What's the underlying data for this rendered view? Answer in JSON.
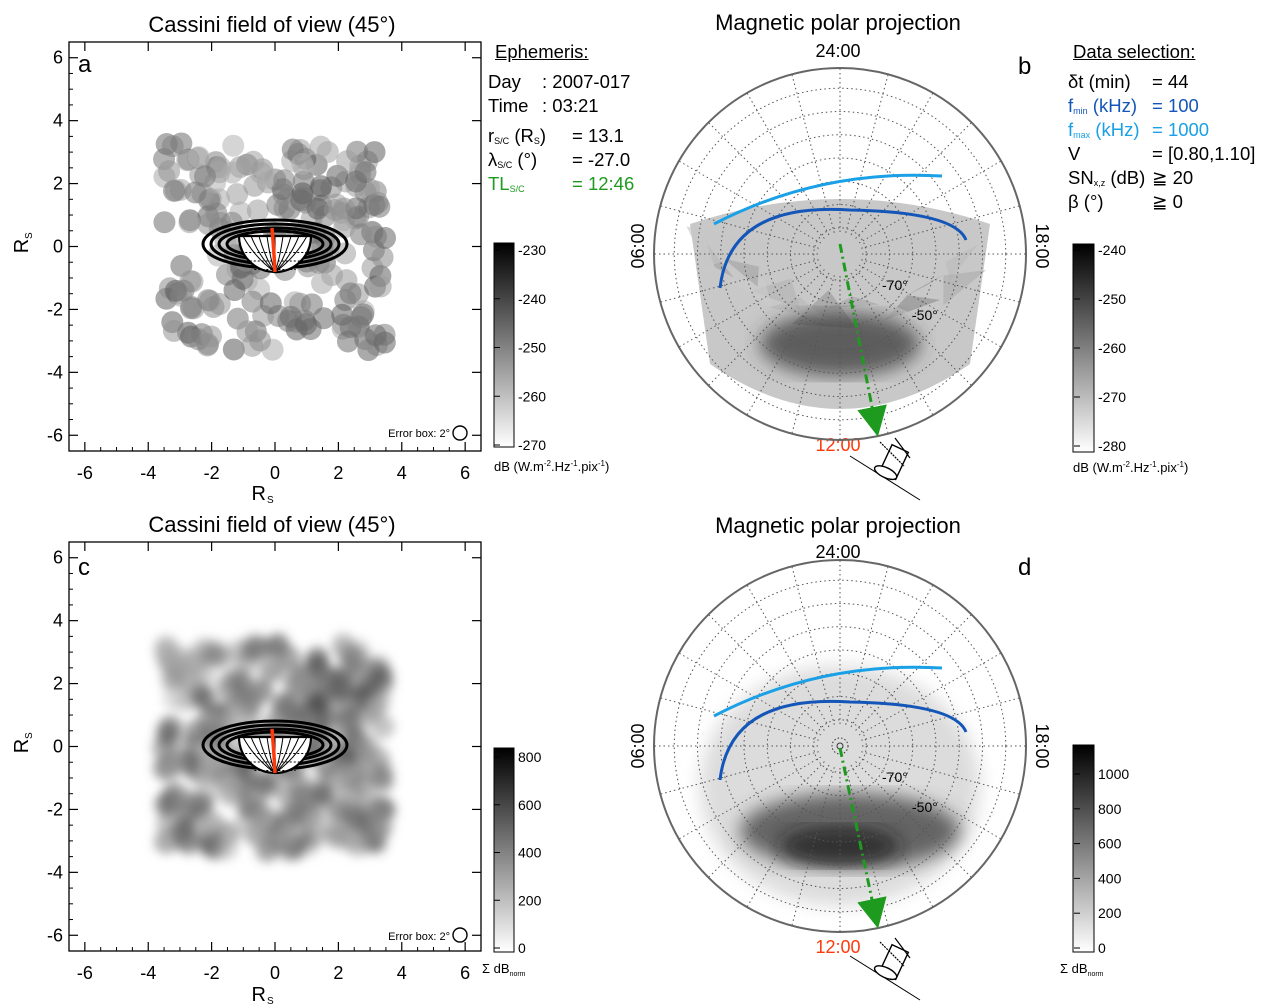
{
  "colors": {
    "fmin": "#1456b8",
    "fmax": "#1aa0e6",
    "tl": "#1e9b1e",
    "noon": "#ff3a0a",
    "trajectory": "#1e9b1e",
    "spacecraft_track": "#ff3a0a"
  },
  "panels": {
    "a": {
      "letter": "a",
      "title": "Cassini field of view (45°)",
      "xlabel": "R",
      "xlabel_sub": "S",
      "ylabel": "R",
      "ylabel_sub": "S",
      "ticks": [
        "-6",
        "-4",
        "-2",
        "0",
        "2",
        "4",
        "6"
      ],
      "error_box": "Error box: 2°"
    },
    "c": {
      "letter": "c",
      "title": "Cassini field of view (45°)",
      "xlabel": "R",
      "xlabel_sub": "S",
      "ylabel": "R",
      "ylabel_sub": "S",
      "ticks": [
        "-6",
        "-4",
        "-2",
        "0",
        "2",
        "4",
        "6"
      ],
      "error_box": "Error box: 2°"
    },
    "b": {
      "letter": "b",
      "title": "Magnetic polar projection",
      "top": "24:00",
      "bottom": "12:00",
      "left": "06:00",
      "right": "18:00",
      "lat1": "-70°",
      "lat2": "-50°"
    },
    "d": {
      "letter": "d",
      "title": "Magnetic polar projection",
      "top": "24:00",
      "bottom": "12:00",
      "left": "06:00",
      "right": "18:00",
      "lat1": "-70°",
      "lat2": "-50°"
    }
  },
  "colorbars": {
    "a": {
      "ticks": [
        "-230",
        "-240",
        "-250",
        "-260",
        "-270"
      ],
      "label": "dB (W.m",
      "label_sup1": "-2",
      "label_mid": ".Hz",
      "label_sup2": "-1",
      "label_mid2": ".pix",
      "label_sup3": "-1",
      "label_end": ")"
    },
    "b": {
      "ticks": [
        "-240",
        "-250",
        "-260",
        "-270",
        "-280"
      ],
      "label": "dB (W.m",
      "label_sup1": "-2",
      "label_mid": ".Hz",
      "label_sup2": "-1",
      "label_mid2": ".pix",
      "label_sup3": "-1",
      "label_end": ")"
    },
    "c": {
      "ticks": [
        "800",
        "600",
        "400",
        "200",
        "0"
      ],
      "label": "Σ dB",
      "label_sub": "norm"
    },
    "d": {
      "ticks": [
        "1000",
        "800",
        "600",
        "400",
        "200",
        "0"
      ],
      "label": "Σ dB",
      "label_sub": "norm"
    }
  },
  "ephemeris": {
    "header": "Ephemeris:",
    "day_label": "Day",
    "day_value": ": 2007-017",
    "time_label": "Time",
    "time_value": ": 03:21",
    "r_label": "r",
    "r_sub": "S/C",
    "r_unit": " (R",
    "r_unit_sub": "S",
    "r_unit_end": ")",
    "r_value": "= 13.1",
    "lat_label": "λ",
    "lat_sub": "S/C",
    "lat_unit": " (°)",
    "lat_value": "= -27.0",
    "tl_label": "TL",
    "tl_sub": "S/C",
    "tl_value": "= 12:46"
  },
  "data_selection": {
    "header": "Data selection:",
    "dt_label": "δt (min)",
    "dt_value": "= 44",
    "fmin_label": "f",
    "fmin_sub": "min",
    "fmin_unit": " (kHz)",
    "fmin_value": "= 100",
    "fmax_label": "f",
    "fmax_sub": "max",
    "fmax_unit": " (kHz)",
    "fmax_value": "= 1000",
    "v_label": "V",
    "v_value": "= [0.80,1.10]",
    "sn_label": "SN",
    "sn_sub": "x,z",
    "sn_unit": " (dB)",
    "sn_value": "≧ 20",
    "beta_label": "β (°)",
    "beta_value": "≧ 0"
  },
  "chart_data": [
    {
      "panel": "a",
      "type": "heatmap",
      "title": "Cassini field of view (45°)",
      "xlabel": "R_S",
      "ylabel": "R_S",
      "xlim": [
        -6.5,
        6.5
      ],
      "ylim": [
        -6.5,
        6.5
      ],
      "value_range": [
        -270,
        -230
      ],
      "unit": "dB (W.m-2.Hz-1.pix-1)",
      "source_extent": {
        "x": [
          -3.5,
          3.5
        ],
        "y": [
          -3.3,
          3.3
        ]
      }
    },
    {
      "panel": "b",
      "type": "heatmap",
      "title": "Magnetic polar projection",
      "value_range": [
        -280,
        -240
      ],
      "unit": "dB (W.m-2.Hz-1.pix-1)",
      "latitude_labels": [
        "-70°",
        "-50°"
      ],
      "local_time_labels": [
        "24:00",
        "06:00",
        "12:00",
        "18:00"
      ]
    },
    {
      "panel": "c",
      "type": "heatmap",
      "title": "Cassini field of view (45°)",
      "xlabel": "R_S",
      "ylabel": "R_S",
      "xlim": [
        -6.5,
        6.5
      ],
      "ylim": [
        -6.5,
        6.5
      ],
      "value_range": [
        0,
        800
      ],
      "unit": "Σ dB_norm",
      "source_extent": {
        "x": [
          -3.5,
          3.5
        ],
        "y": [
          -3.3,
          3.3
        ]
      }
    },
    {
      "panel": "d",
      "type": "heatmap",
      "title": "Magnetic polar projection",
      "value_range": [
        0,
        1100
      ],
      "unit": "Σ dB_norm",
      "latitude_labels": [
        "-70°",
        "-50°"
      ],
      "local_time_labels": [
        "24:00",
        "06:00",
        "12:00",
        "18:00"
      ]
    }
  ]
}
